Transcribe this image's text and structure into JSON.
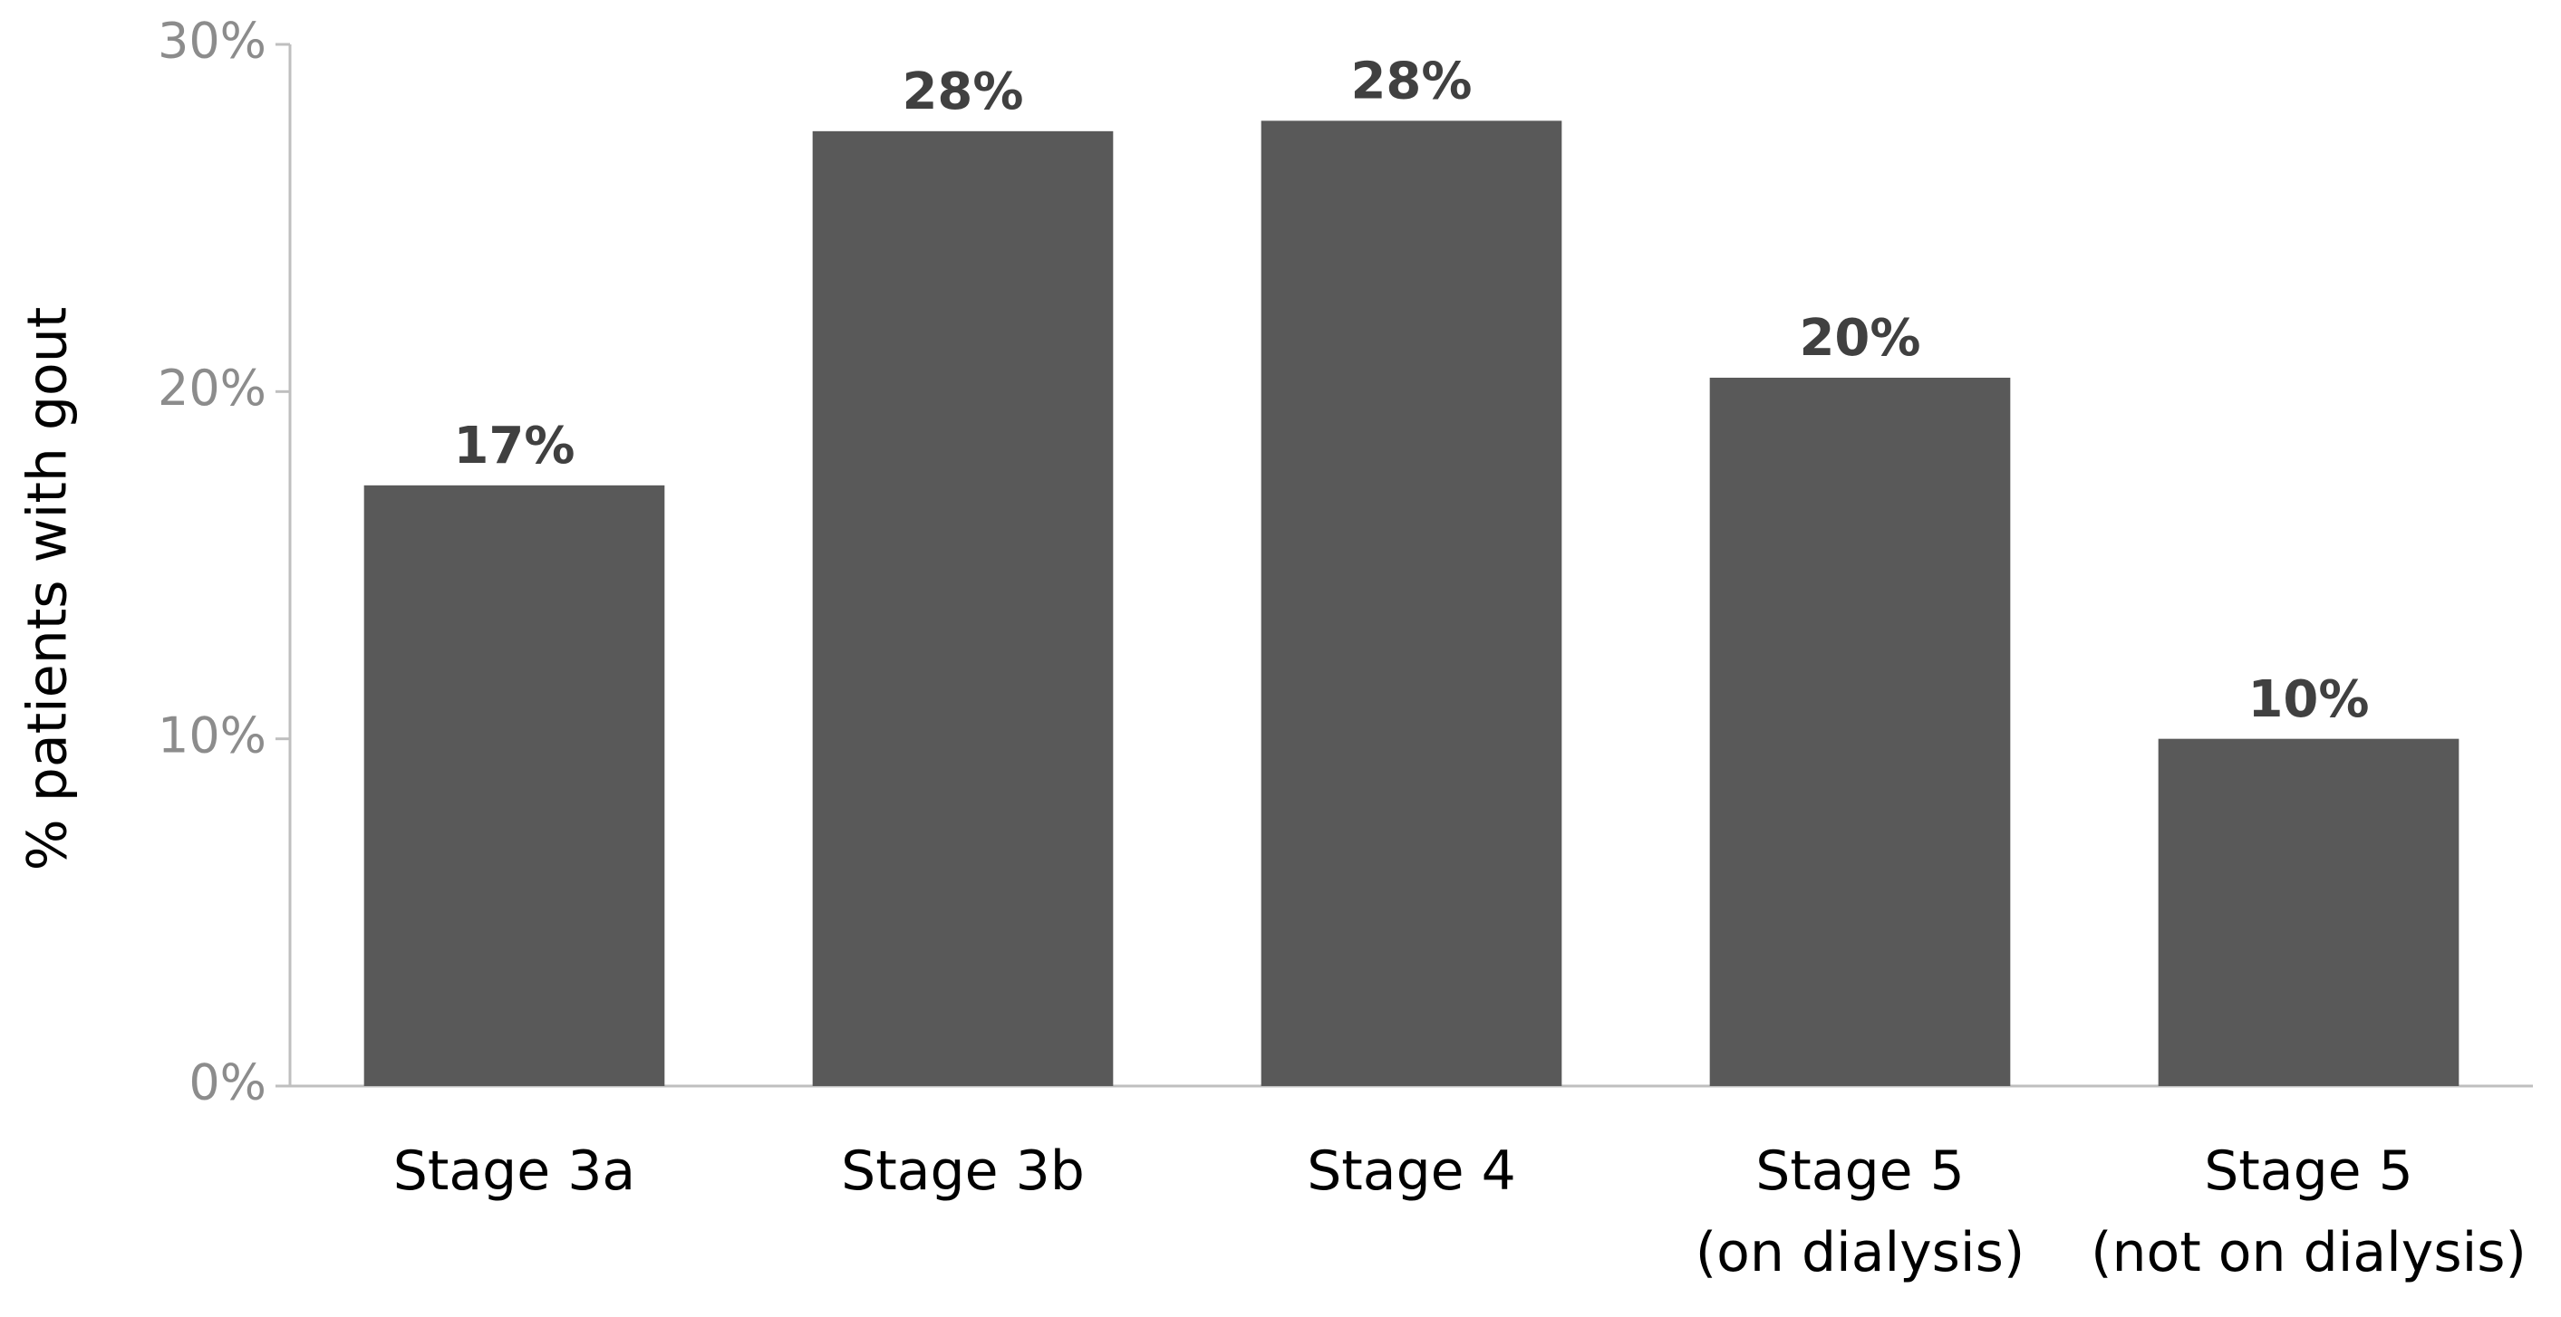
{
  "chart_data": {
    "type": "bar",
    "y_label": "% patients with gout",
    "categories": [
      "Stage 3a",
      "Stage 3b",
      "Stage 4",
      "Stage 5\n(on dialysis)",
      "Stage 5\n(not on dialysis)"
    ],
    "values": [
      17.3,
      27.5,
      27.8,
      20.4,
      10.0
    ],
    "value_labels": [
      "17%",
      "28%",
      "28%",
      "20%",
      "10%"
    ],
    "color": "#595959",
    "ylim": [
      0,
      30
    ],
    "yticks": [
      {
        "value": 0,
        "label": "0%"
      },
      {
        "value": 10,
        "label": "10%"
      },
      {
        "value": 20,
        "label": "20%"
      },
      {
        "value": 30,
        "label": "30%"
      }
    ],
    "grid": false
  }
}
